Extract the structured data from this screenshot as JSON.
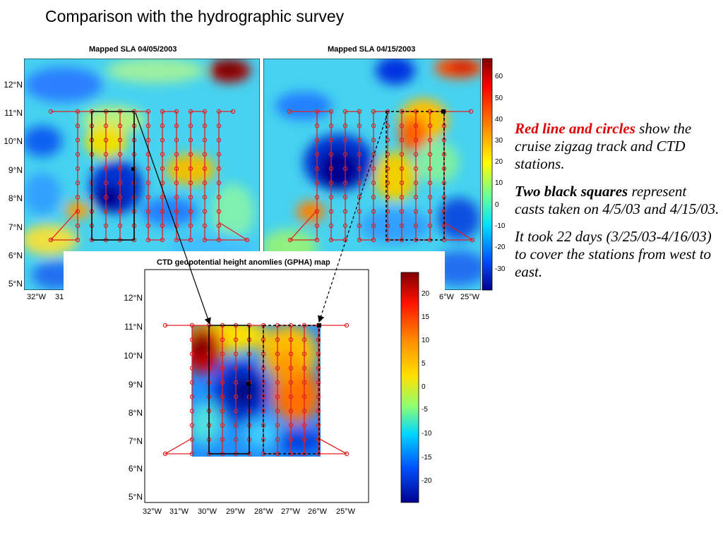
{
  "slide": {
    "title": "Comparison with the hydrographic survey"
  },
  "left_map": {
    "title": "Mapped SLA 04/05/2003",
    "lat_labels": [
      "12°N",
      "11°N",
      "10°N",
      "9°N",
      "8°N",
      "7°N",
      "6°N",
      "5°N"
    ],
    "lon_labels": [
      "32°W",
      "31"
    ]
  },
  "right_map": {
    "title": "Mapped SLA 04/15/2003",
    "lon_labels": [
      "6°W",
      "25°W"
    ],
    "colorbar_labels": [
      "60",
      "50",
      "40",
      "30",
      "20",
      "10",
      "0",
      "-10",
      "-20",
      "-30"
    ]
  },
  "bottom_map": {
    "title": "CTD geopotential height anomlies (GPHA) map",
    "lat_labels": [
      "12°N",
      "11°N",
      "10°N",
      "9°N",
      "8°N",
      "7°N",
      "6°N",
      "5°N"
    ],
    "lon_labels": [
      "32°W",
      "31°W",
      "30°W",
      "29°W",
      "28°W",
      "27°W",
      "26°W",
      "25°W"
    ],
    "colorbar_labels": [
      "20",
      "15",
      "10",
      "5",
      "0",
      "-5",
      "-10",
      "-15",
      "-20"
    ]
  },
  "side_text": {
    "p1_highlight": "Red line and circles",
    "p1_rest": "show the cruise zigzag track and CTD stations.",
    "p2_highlight": "Two black squares",
    "p2_rest": "represent casts taken on 4/5/03 and 4/15/03.",
    "p3": "It took 22 days (3/25/03-4/16/03) to cover the stations from west to east."
  },
  "colors": {
    "red_track": "#e02020",
    "highlight_text": "#e00000"
  }
}
